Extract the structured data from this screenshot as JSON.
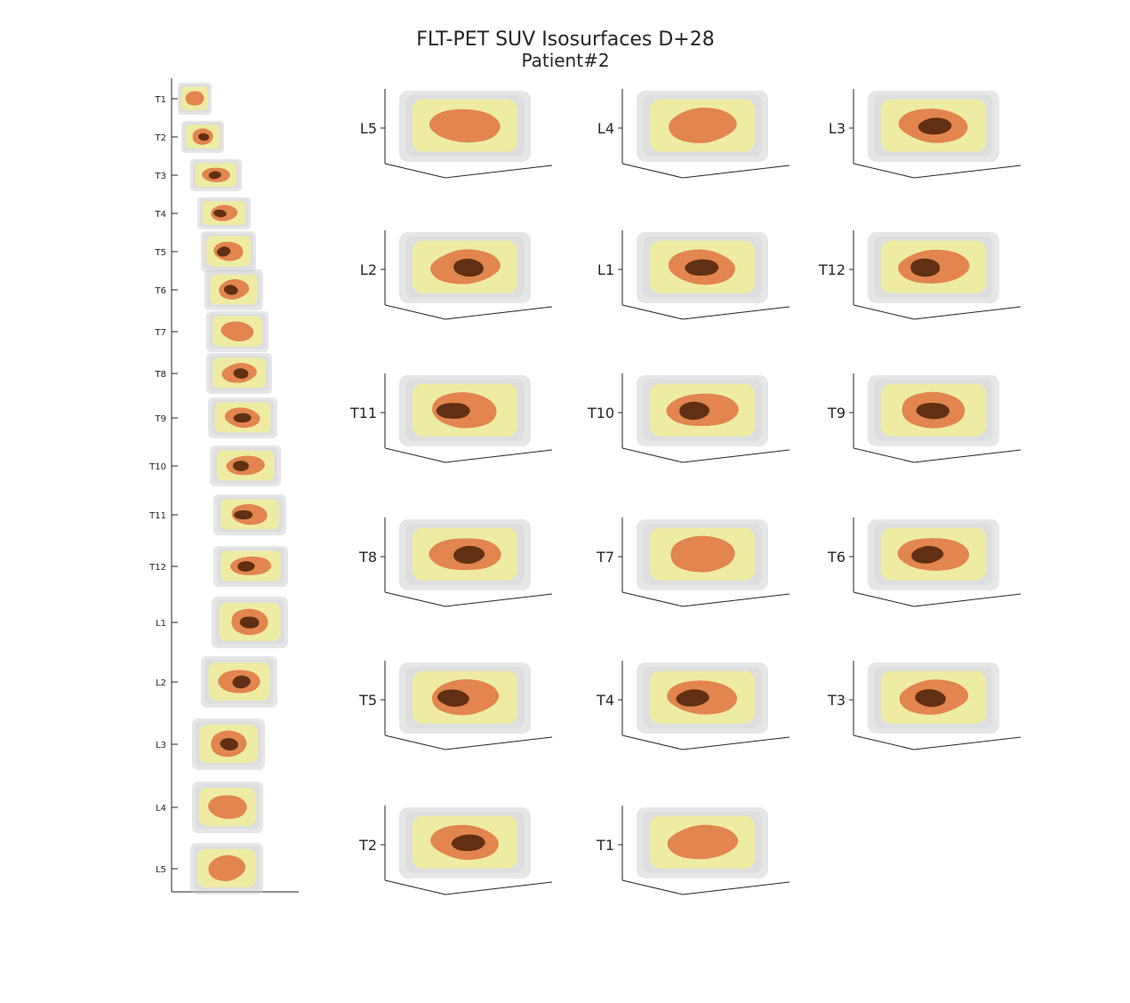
{
  "figure": {
    "title": "FLT-PET SUV Isosurfaces D+28",
    "subtitle": "Patient#2"
  },
  "colors": {
    "outer_shell": "#c8c8c8",
    "yellow_isosurface": "#f1ee99",
    "orange_isosurface": "#e07a45",
    "dark_core": "#5a2a10",
    "axis": "#262626"
  },
  "stack_panel": {
    "tick_labels": [
      "T1",
      "T2",
      "T3",
      "T4",
      "T5",
      "T6",
      "T7",
      "T8",
      "T9",
      "T10",
      "T11",
      "T12",
      "L1",
      "L2",
      "L3",
      "L4",
      "L5"
    ]
  },
  "panels": [
    {
      "label": "L5",
      "dark_core": false
    },
    {
      "label": "L4",
      "dark_core": false
    },
    {
      "label": "L3",
      "dark_core": true
    },
    {
      "label": "L2",
      "dark_core": true
    },
    {
      "label": "L1",
      "dark_core": true
    },
    {
      "label": "T12",
      "dark_core": true
    },
    {
      "label": "T11",
      "dark_core": true
    },
    {
      "label": "T10",
      "dark_core": true
    },
    {
      "label": "T9",
      "dark_core": true
    },
    {
      "label": "T8",
      "dark_core": true
    },
    {
      "label": "T7",
      "dark_core": false
    },
    {
      "label": "T6",
      "dark_core": true
    },
    {
      "label": "T5",
      "dark_core": true
    },
    {
      "label": "T4",
      "dark_core": true
    },
    {
      "label": "T3",
      "dark_core": true
    },
    {
      "label": "T2",
      "dark_core": true
    },
    {
      "label": "T1",
      "dark_core": false
    }
  ]
}
